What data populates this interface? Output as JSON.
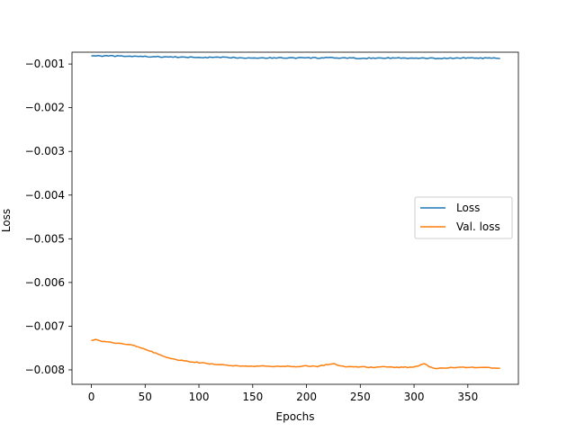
{
  "chart_data": {
    "type": "line",
    "title": "",
    "xlabel": "Epochs",
    "ylabel": "Loss",
    "xlim": [
      -18,
      397
    ],
    "ylim": [
      -0.00833,
      -0.00073
    ],
    "xticks": [
      0,
      50,
      100,
      150,
      200,
      250,
      300,
      350
    ],
    "xtick_labels": [
      "0",
      "50",
      "100",
      "150",
      "200",
      "250",
      "300",
      "350"
    ],
    "yticks": [
      -0.001,
      -0.002,
      -0.003,
      -0.004,
      -0.005,
      -0.006,
      -0.007,
      -0.008
    ],
    "ytick_labels": [
      "−0.001",
      "−0.002",
      "−0.003",
      "−0.004",
      "−0.005",
      "−0.006",
      "−0.007",
      "−0.008"
    ],
    "grid": false,
    "legend_position": "center-right",
    "series": [
      {
        "name": "Loss",
        "color": "#1f77b4",
        "x": [
          0,
          25,
          50,
          75,
          100,
          125,
          150,
          175,
          200,
          225,
          250,
          275,
          300,
          325,
          350,
          375,
          380
        ],
        "y": [
          -0.00081,
          -0.00082,
          -0.00083,
          -0.00084,
          -0.00085,
          -0.00085,
          -0.00086,
          -0.00086,
          -0.00086,
          -0.00086,
          -0.00087,
          -0.00086,
          -0.00087,
          -0.00087,
          -0.00086,
          -0.00087,
          -0.00088
        ]
      },
      {
        "name": "Val. loss",
        "color": "#ff7f0e",
        "x": [
          0,
          5,
          10,
          20,
          30,
          40,
          50,
          60,
          70,
          80,
          90,
          100,
          110,
          120,
          130,
          140,
          150,
          160,
          170,
          180,
          190,
          200,
          210,
          220,
          225,
          230,
          240,
          250,
          260,
          270,
          280,
          290,
          300,
          310,
          315,
          320,
          330,
          340,
          350,
          360,
          370,
          380
        ],
        "y": [
          -0.00732,
          -0.00731,
          -0.00735,
          -0.00738,
          -0.0074,
          -0.00744,
          -0.00753,
          -0.00762,
          -0.00772,
          -0.00777,
          -0.00781,
          -0.00783,
          -0.00786,
          -0.00788,
          -0.0079,
          -0.00791,
          -0.00792,
          -0.00791,
          -0.00792,
          -0.00792,
          -0.00792,
          -0.00791,
          -0.00792,
          -0.00788,
          -0.00785,
          -0.00791,
          -0.00793,
          -0.00793,
          -0.00794,
          -0.00793,
          -0.00794,
          -0.00794,
          -0.00794,
          -0.00786,
          -0.00794,
          -0.00797,
          -0.00795,
          -0.00794,
          -0.00794,
          -0.00795,
          -0.00795,
          -0.00796
        ]
      }
    ]
  }
}
